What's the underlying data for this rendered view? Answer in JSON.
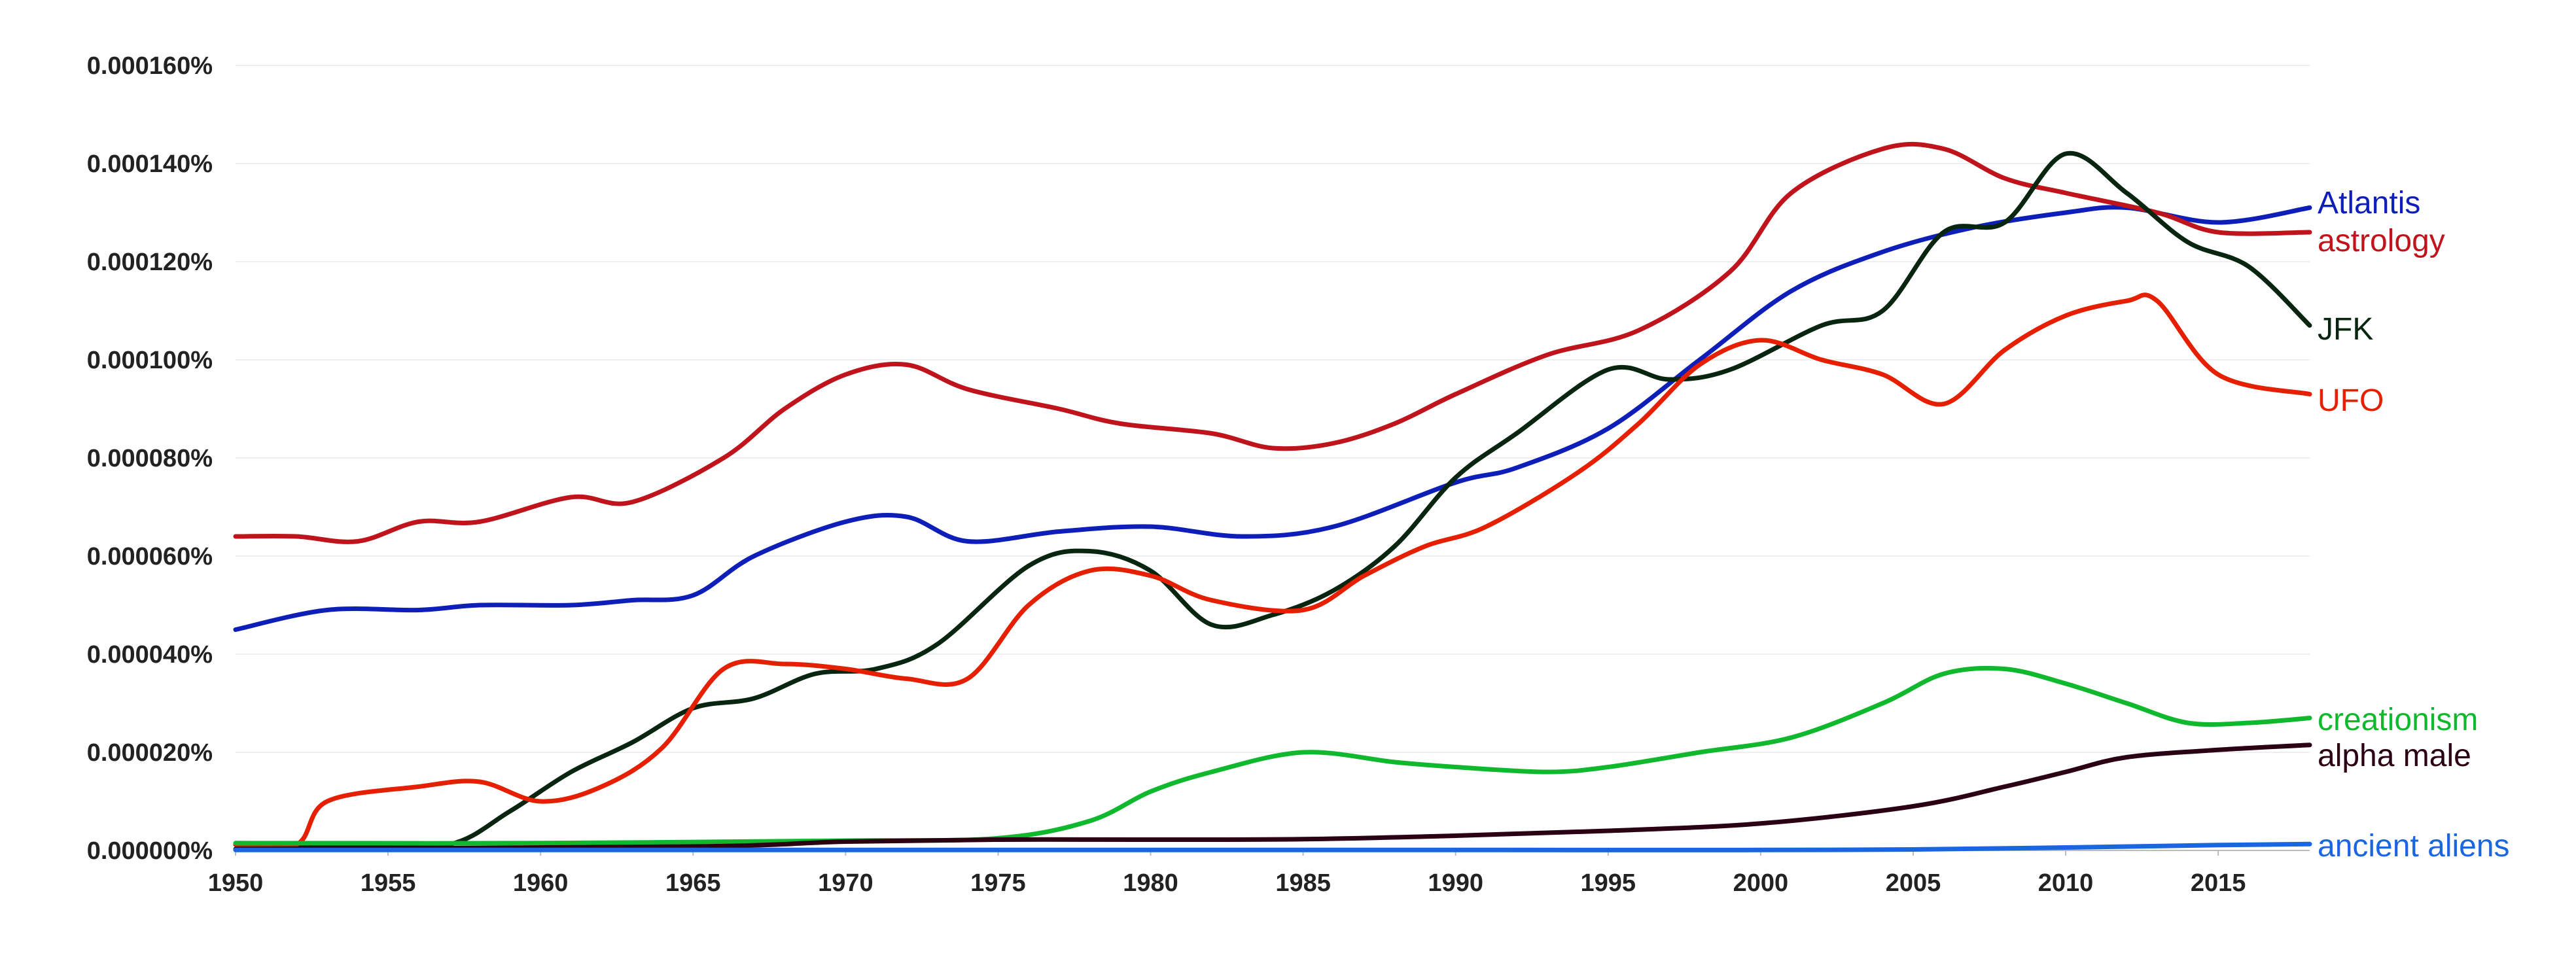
{
  "chart_data": {
    "type": "line",
    "title": "",
    "xlabel": "",
    "ylabel": "",
    "xlim": [
      1950,
      2018
    ],
    "ylim": [
      0,
      0.00016
    ],
    "y_ticks": [
      "0.000000%",
      "0.000020%",
      "0.000040%",
      "0.000060%",
      "0.000080%",
      "0.000100%",
      "0.000120%",
      "0.000140%",
      "0.000160%"
    ],
    "y_tick_values": [
      0,
      2e-05,
      4e-05,
      6e-05,
      8e-05,
      0.0001,
      0.00012,
      0.00014,
      0.00016
    ],
    "x_ticks": [
      "1950",
      "1955",
      "1960",
      "1965",
      "1970",
      "1975",
      "1980",
      "1985",
      "1990",
      "1995",
      "2000",
      "2005",
      "2010",
      "2015"
    ],
    "x_tick_values": [
      1950,
      1955,
      1960,
      1965,
      1970,
      1975,
      1980,
      1985,
      1990,
      1995,
      2000,
      2005,
      2010,
      2015
    ],
    "grid": true,
    "legend": "right-end labels",
    "series": [
      {
        "name": "Atlantis",
        "color": "#0d1fb8",
        "x": [
          1950,
          1953,
          1956,
          1958,
          1961,
          1963,
          1965,
          1967,
          1970,
          1972,
          1974,
          1977,
          1980,
          1983,
          1986,
          1990,
          1992,
          1995,
          1998,
          2001,
          2004,
          2007,
          2010,
          2012,
          2015,
          2018
        ],
        "values": [
          4.5e-05,
          4.9e-05,
          4.9e-05,
          5e-05,
          5e-05,
          5.1e-05,
          5.2e-05,
          6e-05,
          6.7e-05,
          6.8e-05,
          6.3e-05,
          6.5e-05,
          6.6e-05,
          6.4e-05,
          6.6e-05,
          7.5e-05,
          7.8e-05,
          8.6e-05,
          0.0001,
          0.000114,
          0.000122,
          0.000127,
          0.00013,
          0.000131,
          0.000128,
          0.000131
        ]
      },
      {
        "name": "astrology",
        "color": "#c0141c",
        "x": [
          1950,
          1952,
          1954,
          1956,
          1958,
          1961,
          1963,
          1966,
          1968,
          1970,
          1972,
          1974,
          1977,
          1979,
          1982,
          1984,
          1986,
          1988,
          1990,
          1993,
          1996,
          1999,
          2001,
          2004,
          2006,
          2008,
          2010,
          2013,
          2015,
          2018
        ],
        "values": [
          6.4e-05,
          6.4e-05,
          6.3e-05,
          6.7e-05,
          6.7e-05,
          7.2e-05,
          7.1e-05,
          8e-05,
          9e-05,
          9.7e-05,
          9.9e-05,
          9.4e-05,
          9e-05,
          8.7e-05,
          8.5e-05,
          8.2e-05,
          8.3e-05,
          8.7e-05,
          9.3e-05,
          0.000101,
          0.000106,
          0.000118,
          0.000134,
          0.000143,
          0.000143,
          0.000137,
          0.000134,
          0.00013,
          0.000126,
          0.000126
        ]
      },
      {
        "name": "JFK",
        "color": "#07250f",
        "x": [
          1950,
          1954,
          1957,
          1959,
          1961,
          1963,
          1965,
          1967,
          1969,
          1971,
          1973,
          1976,
          1978,
          1980,
          1982,
          1984,
          1986,
          1988,
          1990,
          1992,
          1995,
          1997,
          1999,
          2002,
          2004,
          2006,
          2008,
          2010,
          2012,
          2014,
          2016,
          2018
        ],
        "values": [
          1.2e-06,
          1.2e-06,
          1.2e-06,
          8e-06,
          1.6e-05,
          2.2e-05,
          2.9e-05,
          3.1e-05,
          3.6e-05,
          3.7e-05,
          4.2e-05,
          5.8e-05,
          6.1e-05,
          5.7e-05,
          4.6e-05,
          4.8e-05,
          5.3e-05,
          6.2e-05,
          7.6e-05,
          8.5e-05,
          9.8e-05,
          9.6e-05,
          9.8e-05,
          0.000107,
          0.00011,
          0.000126,
          0.000128,
          0.000142,
          0.000134,
          0.000124,
          0.000119,
          0.000107
        ]
      },
      {
        "name": "UFO",
        "color": "#e51f00",
        "x": [
          1950,
          1952,
          1953,
          1956,
          1958,
          1960,
          1962,
          1964,
          1966,
          1968,
          1970,
          1972,
          1974,
          1976,
          1978,
          1980,
          1982,
          1985,
          1987,
          1989,
          1991,
          1994,
          1996,
          1998,
          2000,
          2002,
          2004,
          2006,
          2008,
          2010,
          2012,
          2013,
          2015,
          2018
        ],
        "values": [
          1.2e-06,
          1.2e-06,
          1e-05,
          1.3e-05,
          1.4e-05,
          1e-05,
          1.3e-05,
          2.1e-05,
          3.7e-05,
          3.8e-05,
          3.7e-05,
          3.5e-05,
          3.5e-05,
          5e-05,
          5.7e-05,
          5.6e-05,
          5.1e-05,
          4.9e-05,
          5.6e-05,
          6.2e-05,
          6.6e-05,
          7.7e-05,
          8.7e-05,
          9.9e-05,
          0.000104,
          0.0001,
          9.7e-05,
          9.1e-05,
          0.000102,
          0.000109,
          0.000112,
          0.000112,
          9.7e-05,
          9.3e-05
        ]
      },
      {
        "name": "creationism",
        "color": "#10b82e",
        "x": [
          1950,
          1960,
          1970,
          1975,
          1978,
          1980,
          1982,
          1985,
          1988,
          1990,
          1993,
          1995,
          1998,
          2001,
          2004,
          2006,
          2008,
          2010,
          2012,
          2014,
          2016,
          2018
        ],
        "values": [
          1.5e-06,
          1.5e-06,
          2e-06,
          2.5e-06,
          6e-06,
          1.2e-05,
          1.6e-05,
          2e-05,
          1.8e-05,
          1.7e-05,
          1.6e-05,
          1.7e-05,
          2e-05,
          2.3e-05,
          3e-05,
          3.6e-05,
          3.7e-05,
          3.4e-05,
          3e-05,
          2.6e-05,
          2.6e-05,
          2.7e-05
        ]
      },
      {
        "name": "alpha male",
        "color": "#2a0012",
        "x": [
          1950,
          1965,
          1970,
          1975,
          1980,
          1985,
          1990,
          1995,
          2000,
          2005,
          2008,
          2010,
          2012,
          2015,
          2018
        ],
        "values": [
          3e-07,
          8e-07,
          1.8e-06,
          2.2e-06,
          2.2e-06,
          2.3e-06,
          3e-06,
          4e-06,
          5.5e-06,
          9e-06,
          1.3e-05,
          1.6e-05,
          1.9e-05,
          2.05e-05,
          2.15e-05
        ]
      },
      {
        "name": "ancient aliens",
        "color": "#1a66e0",
        "x": [
          1950,
          1990,
          2000,
          2005,
          2010,
          2015,
          2018
        ],
        "values": [
          1e-07,
          1e-07,
          1e-07,
          2e-07,
          6e-07,
          1.1e-06,
          1.3e-06
        ]
      }
    ]
  }
}
